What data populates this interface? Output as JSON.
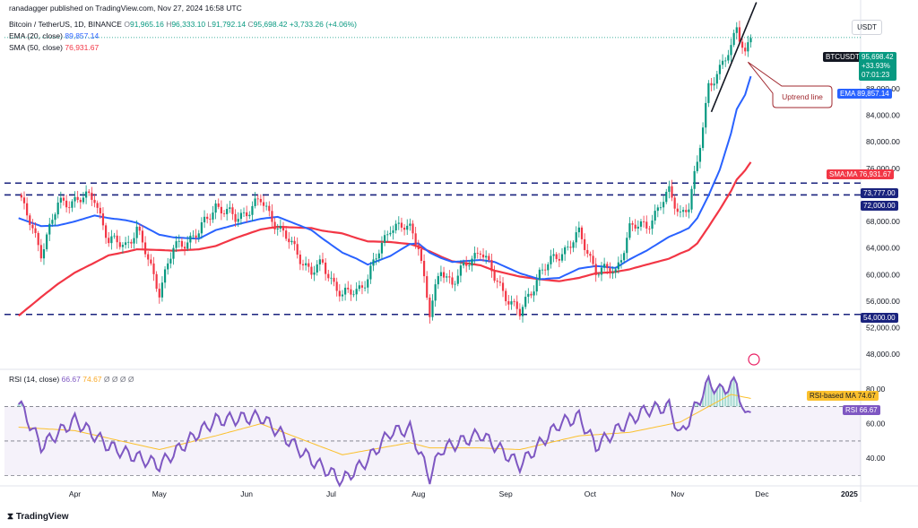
{
  "header": {
    "publisher": "ranadagger published on TradingView.com, Nov 27, 2024 16:58 UTC",
    "symbol": "Bitcoin / TetherUS, 1D, BINANCE",
    "open_label": "O",
    "open": "91,965.16",
    "high_label": "H",
    "high": "96,333.10",
    "low_label": "L",
    "low": "91,792.14",
    "close_label": "C",
    "close": "95,698.42",
    "change": "+3,733.26 (+4.06%)",
    "ema_label": "EMA (20, close)",
    "ema_value": "89,857.14",
    "sma_label": "SMA (50, close)",
    "sma_value": "76,931.67",
    "currency": "USDT"
  },
  "rsi_header": {
    "label": "RSI (14, close)",
    "rsi": "66.67",
    "ma": "74.67",
    "extra": "Ø Ø Ø Ø"
  },
  "tags": {
    "symbol_tag": "BTCUSDT",
    "price": "95,698.42",
    "pct": "+33.93%",
    "countdown": "07:01:23",
    "ema_tag": "EMA",
    "ema_price": "89,857.14",
    "sma_tag": "SMA:MA",
    "sma_price": "76,931.67",
    "level_73777": "73,777.00",
    "level_72000": "72,000.00",
    "level_54000": "54,000.00",
    "rsi_ma_tag": "RSI-based MA",
    "rsi_ma_value": "74.67",
    "rsi_tag": "RSI",
    "rsi_value": "66.67"
  },
  "annotation": {
    "text": "Uptrend line"
  },
  "logo": "TradingView",
  "colors": {
    "up": "#089981",
    "down": "#f23645",
    "ema": "#2962ff",
    "sma": "#f23645",
    "hline": "#1a237e",
    "rsi": "#7e57c2",
    "rsi_ma": "#fbc02d",
    "trendline": "#131722"
  },
  "chart_data": [
    {
      "type": "candlestick",
      "title": "Bitcoin / TetherUS, 1D, BINANCE",
      "ylim": [
        46000,
        100000
      ],
      "y_ticks": [
        48000,
        52000,
        56000,
        60000,
        64000,
        68000,
        72000,
        76000,
        80000,
        84000,
        88000
      ],
      "y_tick_labels": [
        "48,000.00",
        "52,000.00",
        "56,000.00",
        "60,000.00",
        "64,000.00",
        "68,000.00",
        "",
        "76,000.00",
        "80,000.00",
        "84,000.00",
        "88,000.00"
      ],
      "x_ticks": [
        "Apr",
        "May",
        "Jun",
        "Jul",
        "Aug",
        "Sep",
        "Oct",
        "Nov",
        "Dec",
        "2025"
      ],
      "x_tick_dates": [
        "2024-04-01",
        "2024-05-01",
        "2024-06-01",
        "2024-07-01",
        "2024-08-01",
        "2024-09-01",
        "2024-10-01",
        "2024-11-01",
        "2024-12-01",
        "2025-01-01"
      ],
      "horizontal_lines": [
        73777,
        72000,
        54000
      ],
      "uptrend_line": {
        "from": [
          "2024-11-13",
          84500
        ],
        "to": [
          "2024-11-29",
          101000
        ]
      },
      "anchors": {
        "dates": [
          "2024-03-12",
          "2024-03-20",
          "2024-03-26",
          "2024-04-01",
          "2024-04-08",
          "2024-04-13",
          "2024-04-19",
          "2024-04-23",
          "2024-05-01",
          "2024-05-06",
          "2024-05-15",
          "2024-05-21",
          "2024-05-28",
          "2024-06-06",
          "2024-06-12",
          "2024-06-24",
          "2024-06-28",
          "2024-07-05",
          "2024-07-10",
          "2024-07-14",
          "2024-07-22",
          "2024-07-29",
          "2024-08-01",
          "2024-08-05",
          "2024-08-09",
          "2024-08-13",
          "2024-08-23",
          "2024-08-28",
          "2024-09-06",
          "2024-09-13",
          "2024-09-20",
          "2024-09-27",
          "2024-10-03",
          "2024-10-10",
          "2024-10-15",
          "2024-10-21",
          "2024-10-29",
          "2024-11-02",
          "2024-11-05",
          "2024-11-08",
          "2024-11-12",
          "2024-11-16",
          "2024-11-20",
          "2024-11-22",
          "2024-11-25",
          "2024-11-27"
        ],
        "close": [
          72000,
          63500,
          70500,
          71300,
          71600,
          65000,
          64500,
          66800,
          57600,
          63900,
          66300,
          70500,
          68400,
          71100,
          67300,
          60300,
          61500,
          56700,
          57700,
          59500,
          67400,
          66800,
          64700,
          54000,
          60900,
          58800,
          64000,
          59400,
          54000,
          60300,
          63000,
          66000,
          60800,
          60300,
          67000,
          67400,
          72300,
          69300,
          70300,
          76500,
          88700,
          90600,
          94200,
          97800,
          93000,
          95698
        ],
        "ema": [
          68500,
          67300,
          67400,
          68000,
          68900,
          68500,
          68200,
          67800,
          66000,
          65600,
          65400,
          66700,
          67500,
          68400,
          68700,
          66700,
          65400,
          63300,
          62400,
          61500,
          62800,
          64600,
          64700,
          63300,
          62500,
          61900,
          62200,
          61900,
          60200,
          59300,
          59500,
          60900,
          61300,
          61000,
          62300,
          63600,
          65700,
          66400,
          67000,
          68500,
          71900,
          75800,
          81300,
          84900,
          87100,
          89857
        ],
        "sma": [
          53800,
          56600,
          58600,
          60300,
          61800,
          62900,
          63400,
          63800,
          63700,
          63600,
          63800,
          64300,
          65500,
          66800,
          67200,
          67000,
          66600,
          66200,
          65500,
          65000,
          64900,
          64600,
          64200,
          63500,
          62700,
          62000,
          61400,
          60600,
          59700,
          59300,
          59000,
          59500,
          60200,
          60400,
          60800,
          61500,
          62400,
          63200,
          63700,
          64700,
          67200,
          69800,
          72600,
          74300,
          75700,
          76932
        ]
      }
    },
    {
      "type": "line",
      "title": "RSI (14, close)",
      "ylim": [
        25,
        90
      ],
      "y_ticks": [
        40,
        60,
        80
      ],
      "y_tick_labels": [
        "40.00",
        "60.00",
        "80.00"
      ],
      "band": [
        30,
        70
      ],
      "series": [
        {
          "name": "RSI",
          "dates": [
            "2024-03-12",
            "2024-03-20",
            "2024-04-01",
            "2024-04-13",
            "2024-04-19",
            "2024-05-01",
            "2024-05-15",
            "2024-05-21",
            "2024-06-06",
            "2024-06-24",
            "2024-07-05",
            "2024-07-14",
            "2024-07-22",
            "2024-07-29",
            "2024-08-05",
            "2024-08-09",
            "2024-08-23",
            "2024-09-06",
            "2024-09-20",
            "2024-09-27",
            "2024-10-03",
            "2024-10-15",
            "2024-10-21",
            "2024-10-29",
            "2024-11-02",
            "2024-11-12",
            "2024-11-16",
            "2024-11-22",
            "2024-11-25",
            "2024-11-27"
          ],
          "values": [
            73,
            47,
            62,
            47,
            43,
            36,
            55,
            62,
            64,
            39,
            27,
            39,
            55,
            57,
            29,
            45,
            54,
            36,
            60,
            64,
            47,
            62,
            68,
            70,
            53,
            84,
            79,
            84,
            63,
            66.67
          ]
        },
        {
          "name": "RSI-based MA",
          "dates": [
            "2024-03-12",
            "2024-04-01",
            "2024-05-01",
            "2024-05-21",
            "2024-06-06",
            "2024-07-05",
            "2024-07-29",
            "2024-08-05",
            "2024-08-23",
            "2024-09-06",
            "2024-09-27",
            "2024-10-15",
            "2024-11-02",
            "2024-11-12",
            "2024-11-20",
            "2024-11-27"
          ],
          "values": [
            58,
            56,
            45,
            53,
            60,
            42,
            49,
            46,
            46,
            45,
            53,
            55,
            61,
            70,
            77,
            74.67
          ]
        }
      ]
    }
  ]
}
